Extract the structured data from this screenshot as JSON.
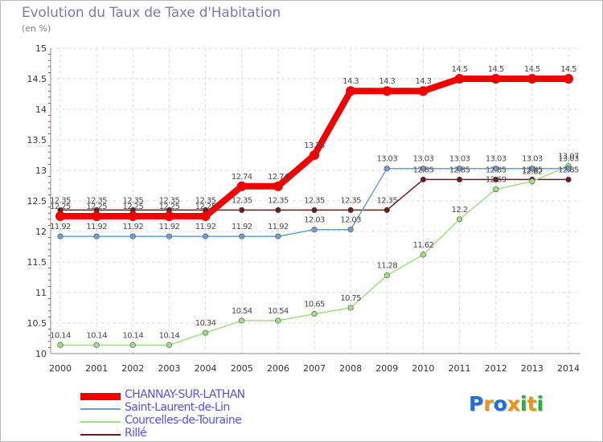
{
  "title": "Evolution du Taux de Taxe d'Habitation",
  "subtitle": "(en %)",
  "logo": {
    "text": "Proxiti",
    "colors": [
      "#1e6fd9",
      "#e8961a",
      "#1e6fd9",
      "#e8961a",
      "#27b042",
      "#e8961a",
      "#27b042"
    ]
  },
  "chart_data": {
    "type": "line",
    "title": "Evolution du Taux de Taxe d'Habitation",
    "ylabel": "(en %)",
    "xlabel": "",
    "ylim": [
      10,
      15
    ],
    "yticks": [
      "10",
      "10.5",
      "11",
      "11.5",
      "12",
      "12.5",
      "13",
      "13.5",
      "14",
      "14.5",
      "15"
    ],
    "categories": [
      "2000",
      "2001",
      "2002",
      "2003",
      "2004",
      "2005",
      "2006",
      "2007",
      "2008",
      "2009",
      "2010",
      "2011",
      "2012",
      "2013",
      "2014"
    ],
    "grid": true,
    "legend_position": "bottom-left",
    "series": [
      {
        "name": "Rillé",
        "color": "#6b1b1b",
        "values": [
          12.35,
          12.35,
          12.35,
          12.35,
          12.35,
          12.35,
          12.35,
          12.35,
          12.35,
          12.35,
          12.85,
          12.85,
          12.85,
          12.85,
          12.85
        ],
        "labels": [
          "12.35",
          "12.35",
          "12.35",
          "12.35",
          "12.35",
          "12.35",
          "12.35",
          "12.35",
          "12.35",
          "12.35",
          "12.85",
          "12.85",
          "12.85",
          "12.85",
          "12.85"
        ]
      },
      {
        "name": "Courcelles-de-Touraine",
        "color": "#9ee07f",
        "values": [
          10.14,
          10.14,
          10.14,
          10.14,
          10.34,
          10.54,
          10.54,
          10.65,
          10.75,
          11.28,
          11.62,
          12.2,
          12.69,
          12.82,
          13.07
        ],
        "labels": [
          "10.14",
          "10.14",
          "10.14",
          "10.14",
          "10.34",
          "10.54",
          "10.54",
          "10.65",
          "10.75",
          "11.28",
          "11.62",
          "12.2",
          "12.69",
          "12.82",
          "13.07"
        ]
      },
      {
        "name": "Saint-Laurent-de-Lin",
        "color": "#6c9fd0",
        "values": [
          11.92,
          11.92,
          11.92,
          11.92,
          11.92,
          11.92,
          11.92,
          12.03,
          12.03,
          13.03,
          13.03,
          13.03,
          13.03,
          13.03,
          13.03
        ],
        "labels": [
          "11.92",
          "11.92",
          "11.92",
          "11.92",
          "11.92",
          "11.92",
          "11.92",
          "12.03",
          "12.03",
          "13.03",
          "13.03",
          "13.03",
          "13.03",
          "13.03",
          "13.03"
        ]
      },
      {
        "name": "CHANNAY-SUR-LATHAN",
        "color": "#ee0000",
        "values": [
          12.25,
          12.25,
          12.25,
          12.25,
          12.25,
          12.74,
          12.74,
          13.25,
          14.3,
          14.3,
          14.3,
          14.5,
          14.5,
          14.5,
          14.5
        ],
        "labels": [
          "12.25",
          "12.25",
          "12.25",
          "12.25",
          "12.25",
          "12.74",
          "12.74",
          "13.25",
          "14.3",
          "14.3",
          "14.3",
          "14.5",
          "14.5",
          "14.5",
          "14.5"
        ]
      }
    ],
    "legend_order": [
      "CHANNAY-SUR-LATHAN",
      "Saint-Laurent-de-Lin",
      "Courcelles-de-Touraine",
      "Rillé"
    ]
  }
}
